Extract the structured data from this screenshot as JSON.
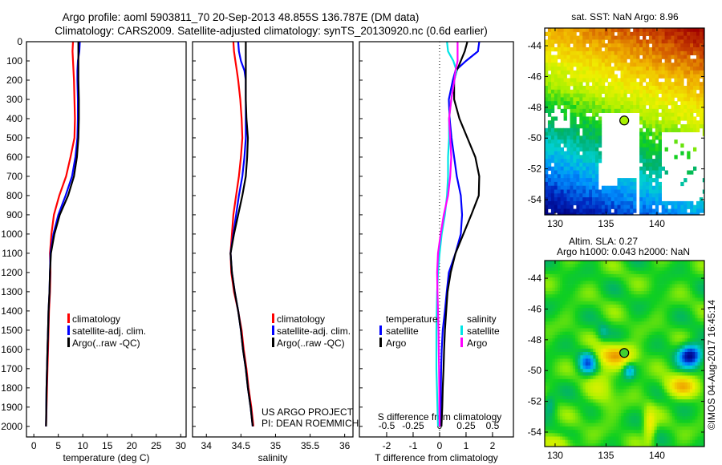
{
  "title": {
    "line1": "Argo profile: aoml 5903811_70 20-Sep-2013 48.855S 136.787E (DM data)",
    "line2": "Climatology: CARS2009. Satellite-adjusted climatology: synTS_20130920.nc (0.6d earlier)"
  },
  "credits": {
    "line1": "US ARGO PROJECT",
    "line2": "PI: DEAN ROEMMICH"
  },
  "watermark": "©IMOS 04-Aug-2017 16:45:14",
  "colors": {
    "climatology": "#ff0000",
    "satellite": "#0000ff",
    "argo": "#000000",
    "s_satellite": "#00e5e5",
    "s_argo": "#ff00ff"
  },
  "chart_data": [
    {
      "type": "line",
      "title": "",
      "xlabel": "temperature (deg C)",
      "ylabel": "",
      "xlim": [
        -1.5,
        31.1
      ],
      "ylim": [
        0,
        2055
      ],
      "xticks": [
        0,
        5,
        10,
        15,
        20,
        25,
        30
      ],
      "yticks": [
        0,
        100,
        200,
        300,
        400,
        500,
        600,
        700,
        800,
        900,
        1000,
        1100,
        1200,
        1300,
        1400,
        1500,
        1600,
        1700,
        1800,
        1900,
        2000
      ],
      "depth": [
        0,
        50,
        100,
        150,
        200,
        300,
        400,
        500,
        600,
        700,
        800,
        900,
        1000,
        1100,
        1200,
        1300,
        1400,
        1500,
        1600,
        1700,
        1800,
        1900,
        2000
      ],
      "legend": [
        "climatology",
        "satellite-adj. clim.",
        "Argo(..raw -QC)"
      ],
      "series": [
        {
          "name": "climatology",
          "color": "#ff0000",
          "values": [
            8.0,
            7.9,
            8.0,
            8.1,
            8.2,
            8.3,
            8.4,
            8.3,
            7.5,
            6.6,
            5.2,
            4.1,
            3.6,
            3.3,
            3.4,
            3.3,
            3.1,
            3.0,
            2.9,
            2.8,
            2.7,
            2.6,
            2.5
          ]
        },
        {
          "name": "satellite-adj. clim.",
          "color": "#0000ff",
          "values": [
            9.4,
            9.3,
            9.0,
            8.9,
            8.9,
            9.0,
            9.0,
            8.9,
            8.5,
            7.8,
            6.5,
            5.0,
            4.0,
            3.4,
            3.3,
            3.2,
            3.0,
            2.9,
            2.8,
            2.7,
            2.6,
            2.55,
            2.5
          ]
        },
        {
          "name": "Argo(..raw -QC)",
          "color": "#000000",
          "values": [
            9.1,
            9.1,
            9.1,
            9.1,
            9.1,
            9.2,
            9.2,
            9.1,
            8.8,
            8.2,
            7.0,
            5.3,
            4.2,
            3.5,
            3.3,
            3.2,
            3.0,
            2.9,
            2.8,
            2.7,
            2.6,
            2.55,
            2.5
          ]
        }
      ]
    },
    {
      "type": "line",
      "xlabel": "salinity",
      "xlim": [
        33.8,
        36.12
      ],
      "ylim": [
        0,
        2055
      ],
      "xticks": [
        34,
        34.5,
        35,
        35.5,
        36
      ],
      "depth": [
        0,
        50,
        100,
        150,
        200,
        300,
        400,
        500,
        600,
        700,
        800,
        900,
        1000,
        1100,
        1200,
        1300,
        1400,
        1500,
        1600,
        1700,
        1800,
        1900,
        2000
      ],
      "legend": [
        "climatology",
        "satellite-adj. clim.",
        "Argo(..raw -QC)"
      ],
      "series": [
        {
          "name": "climatology",
          "color": "#ff0000",
          "values": [
            34.39,
            34.4,
            34.42,
            34.44,
            34.46,
            34.49,
            34.51,
            34.52,
            34.5,
            34.47,
            34.43,
            34.39,
            34.37,
            34.35,
            34.36,
            34.4,
            34.46,
            34.51,
            34.54,
            34.58,
            34.61,
            34.65,
            34.68
          ]
        },
        {
          "name": "satellite-adj. clim.",
          "color": "#0000ff",
          "values": [
            34.46,
            34.47,
            34.5,
            34.55,
            34.57,
            34.57,
            34.57,
            34.57,
            34.55,
            34.52,
            34.47,
            34.43,
            34.39,
            34.35,
            34.37,
            34.41,
            34.46,
            34.5,
            34.53,
            34.57,
            34.6,
            34.64,
            34.67
          ]
        },
        {
          "name": "Argo(..raw -QC)",
          "color": "#000000",
          "values": [
            34.57,
            34.57,
            34.57,
            34.57,
            34.57,
            34.57,
            34.58,
            34.6,
            34.59,
            34.57,
            34.52,
            34.46,
            34.4,
            34.35,
            34.37,
            34.41,
            34.46,
            34.5,
            34.53,
            34.57,
            34.6,
            34.64,
            34.67
          ]
        }
      ]
    },
    {
      "type": "line",
      "xlabel": "T difference from climatology",
      "xlabel2": "S difference from climatology",
      "xlim": [
        -3.03,
        2.79
      ],
      "xticks": [
        -2,
        -1,
        0,
        1,
        2
      ],
      "xticks2": [
        -0.5,
        -0.25,
        0,
        0.25,
        0.5
      ],
      "s_to_t_scale": 4,
      "ylim": [
        0,
        2055
      ],
      "depth": [
        0,
        50,
        100,
        150,
        200,
        300,
        400,
        500,
        600,
        700,
        800,
        900,
        1000,
        1100,
        1200,
        1300,
        1400,
        1500,
        1600,
        1700,
        1800,
        1900,
        2000
      ],
      "legend_headers": [
        "temperature",
        "salinity"
      ],
      "legend": [
        "satellite",
        "Argo",
        "satellite",
        "Argo"
      ],
      "series": [
        {
          "name": "T satellite",
          "axis": "T",
          "color": "#0000ff",
          "values": [
            1.5,
            1.45,
            1.0,
            0.6,
            0.5,
            0.35,
            0.38,
            0.45,
            0.55,
            0.65,
            0.8,
            0.85,
            0.8,
            0.6,
            0.35,
            0.27,
            0.2,
            0.12,
            0.08,
            0.06,
            0.05,
            0.04,
            0.03
          ]
        },
        {
          "name": "T Argo",
          "axis": "T",
          "color": "#000000",
          "values": [
            1.05,
            0.95,
            0.8,
            0.65,
            0.55,
            0.55,
            0.75,
            1.05,
            1.35,
            1.5,
            1.48,
            1.2,
            0.9,
            0.6,
            0.42,
            0.3,
            0.25,
            0.2,
            0.17,
            0.15,
            0.12,
            0.1,
            0.07
          ]
        },
        {
          "name": "S satellite",
          "axis": "S",
          "color": "#00e5e5",
          "values": [
            0.07,
            0.08,
            0.13,
            0.16,
            0.14,
            0.11,
            0.09,
            0.09,
            0.08,
            0.08,
            0.07,
            0.05,
            0.02,
            0.0,
            -0.015,
            -0.023,
            -0.027,
            -0.03,
            -0.03,
            -0.03,
            -0.025,
            -0.02,
            -0.015
          ]
        },
        {
          "name": "S Argo",
          "axis": "S",
          "color": "#ff00ff",
          "values": [
            0.17,
            0.17,
            0.17,
            0.15,
            0.14,
            0.11,
            0.09,
            0.1,
            0.11,
            0.1,
            0.08,
            0.04,
            0.01,
            -0.015,
            -0.023,
            -0.02,
            -0.015,
            -0.01,
            -0.008,
            -0.005,
            -0.003,
            -0.002,
            0.0
          ]
        }
      ]
    },
    {
      "type": "heatmap",
      "title": "sat. SST: NaN Argo: 8.96",
      "xlim": [
        128.98,
        144.65
      ],
      "ylim": [
        -54.99,
        -42.85
      ],
      "xticks": [
        130,
        135,
        140
      ],
      "yticks": [
        -44,
        -46,
        -48,
        -50,
        -52,
        -54
      ],
      "argo_position": {
        "lon": 136.787,
        "lat": -48.855
      }
    },
    {
      "type": "heatmap",
      "title": "Altim. SLA: 0.27",
      "subtitle": "Argo h1000: 0.043 h2000: NaN",
      "xlim": [
        128.98,
        144.65
      ],
      "ylim": [
        -54.94,
        -42.85
      ],
      "xticks": [
        130,
        135,
        140
      ],
      "yticks": [
        -44,
        -46,
        -48,
        -50,
        -52,
        -54
      ],
      "argo_position": {
        "lon": 136.787,
        "lat": -48.855
      }
    }
  ]
}
